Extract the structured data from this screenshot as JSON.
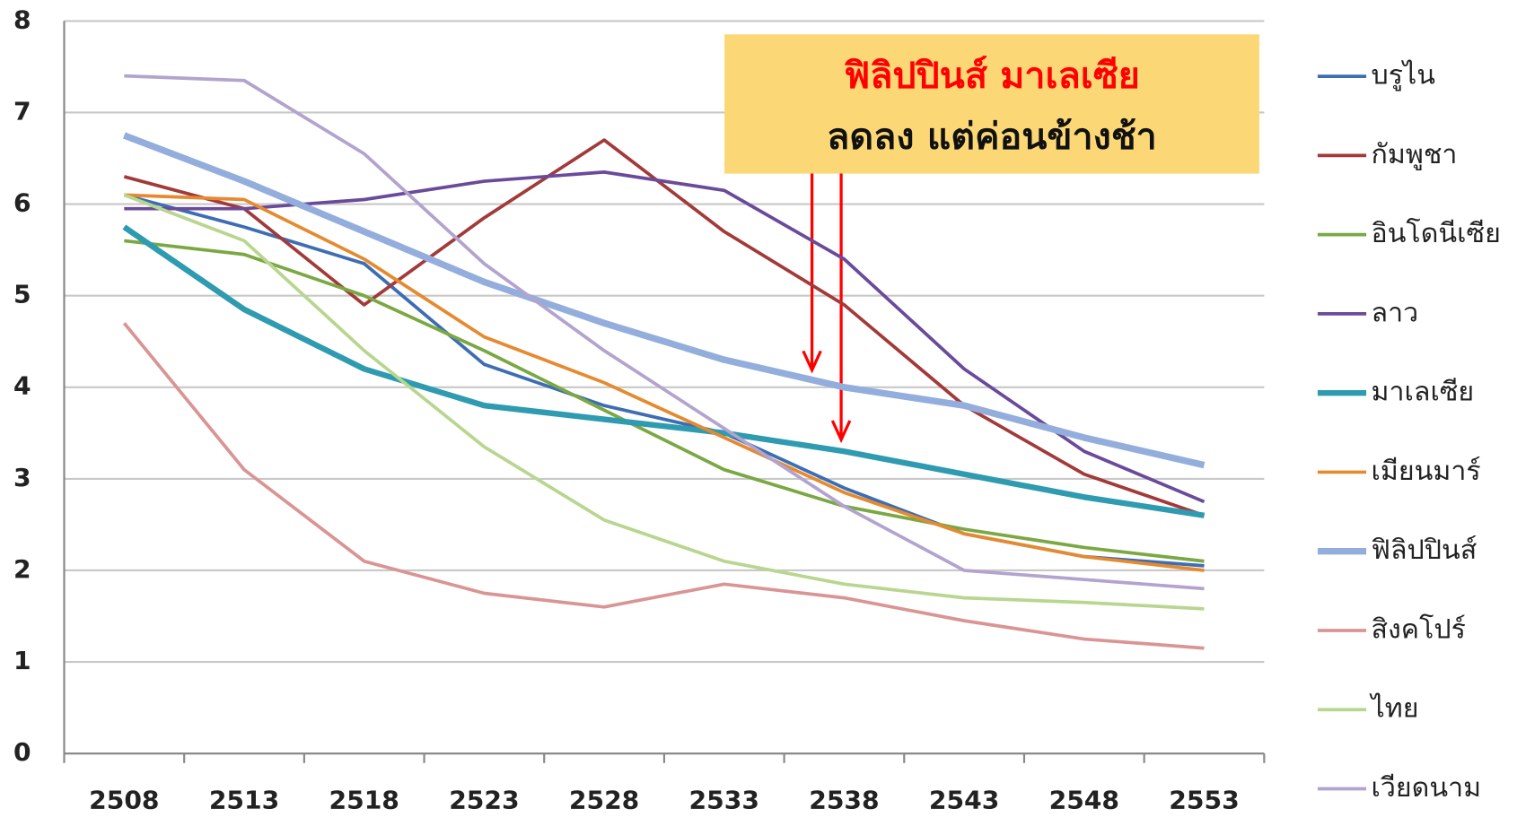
{
  "chart_data": {
    "type": "line",
    "categories": [
      "2508",
      "2513",
      "2518",
      "2523",
      "2528",
      "2533",
      "2538",
      "2543",
      "2548",
      "2553"
    ],
    "ylim": [
      0,
      8
    ],
    "yticks": [
      0,
      1,
      2,
      3,
      4,
      5,
      6,
      7,
      8
    ],
    "grid": true,
    "legend": "right",
    "annotations": [
      {
        "text": "ฟิลิปปินส์ มาเลเซีย",
        "color": "#ff0000"
      },
      {
        "text": "ลดลง แต่ค่อนข้างช้า",
        "color": "#111111"
      }
    ],
    "series": [
      {
        "name": "บรูไน",
        "color": "#3d6db3",
        "values": [
          6.1,
          5.75,
          5.35,
          4.25,
          3.8,
          3.5,
          2.9,
          2.4,
          2.15,
          2.05
        ]
      },
      {
        "name": "กัมพูชา",
        "color": "#a33a3a",
        "values": [
          6.3,
          5.95,
          4.9,
          5.85,
          6.7,
          5.7,
          4.9,
          3.8,
          3.05,
          2.6
        ]
      },
      {
        "name": "อินโดนีเซีย",
        "color": "#7aa843",
        "values": [
          5.6,
          5.45,
          5.0,
          4.4,
          3.75,
          3.1,
          2.7,
          2.45,
          2.25,
          2.1
        ]
      },
      {
        "name": "ลาว",
        "color": "#6a4a9a",
        "values": [
          5.95,
          5.95,
          6.05,
          6.25,
          6.35,
          6.15,
          5.4,
          4.2,
          3.3,
          2.75
        ]
      },
      {
        "name": "มาเลเซีย",
        "color": "#2e9bb0",
        "values": [
          5.75,
          4.85,
          4.2,
          3.8,
          3.65,
          3.5,
          3.3,
          3.05,
          2.8,
          2.6
        ]
      },
      {
        "name": "เมียนมาร์",
        "color": "#e58a2f",
        "values": [
          6.1,
          6.05,
          5.4,
          4.55,
          4.05,
          3.45,
          2.85,
          2.4,
          2.15,
          2.0
        ]
      },
      {
        "name": "ฟิลิปปินส์",
        "color": "#93aedc",
        "values": [
          6.75,
          6.25,
          5.7,
          5.15,
          4.7,
          4.3,
          4.0,
          3.8,
          3.45,
          3.15
        ]
      },
      {
        "name": "สิงคโปร์",
        "color": "#d99594",
        "values": [
          4.7,
          3.1,
          2.1,
          1.75,
          1.6,
          1.85,
          1.7,
          1.45,
          1.25,
          1.15
        ]
      },
      {
        "name": "ไทย",
        "color": "#b8d68f",
        "values": [
          6.1,
          5.6,
          4.4,
          3.35,
          2.55,
          2.1,
          1.85,
          1.7,
          1.65,
          1.58
        ]
      },
      {
        "name": "เวียดนาม",
        "color": "#b2a3cf",
        "values": [
          7.4,
          7.35,
          6.55,
          5.35,
          4.4,
          3.55,
          2.7,
          2.0,
          1.9,
          1.8
        ]
      }
    ]
  }
}
